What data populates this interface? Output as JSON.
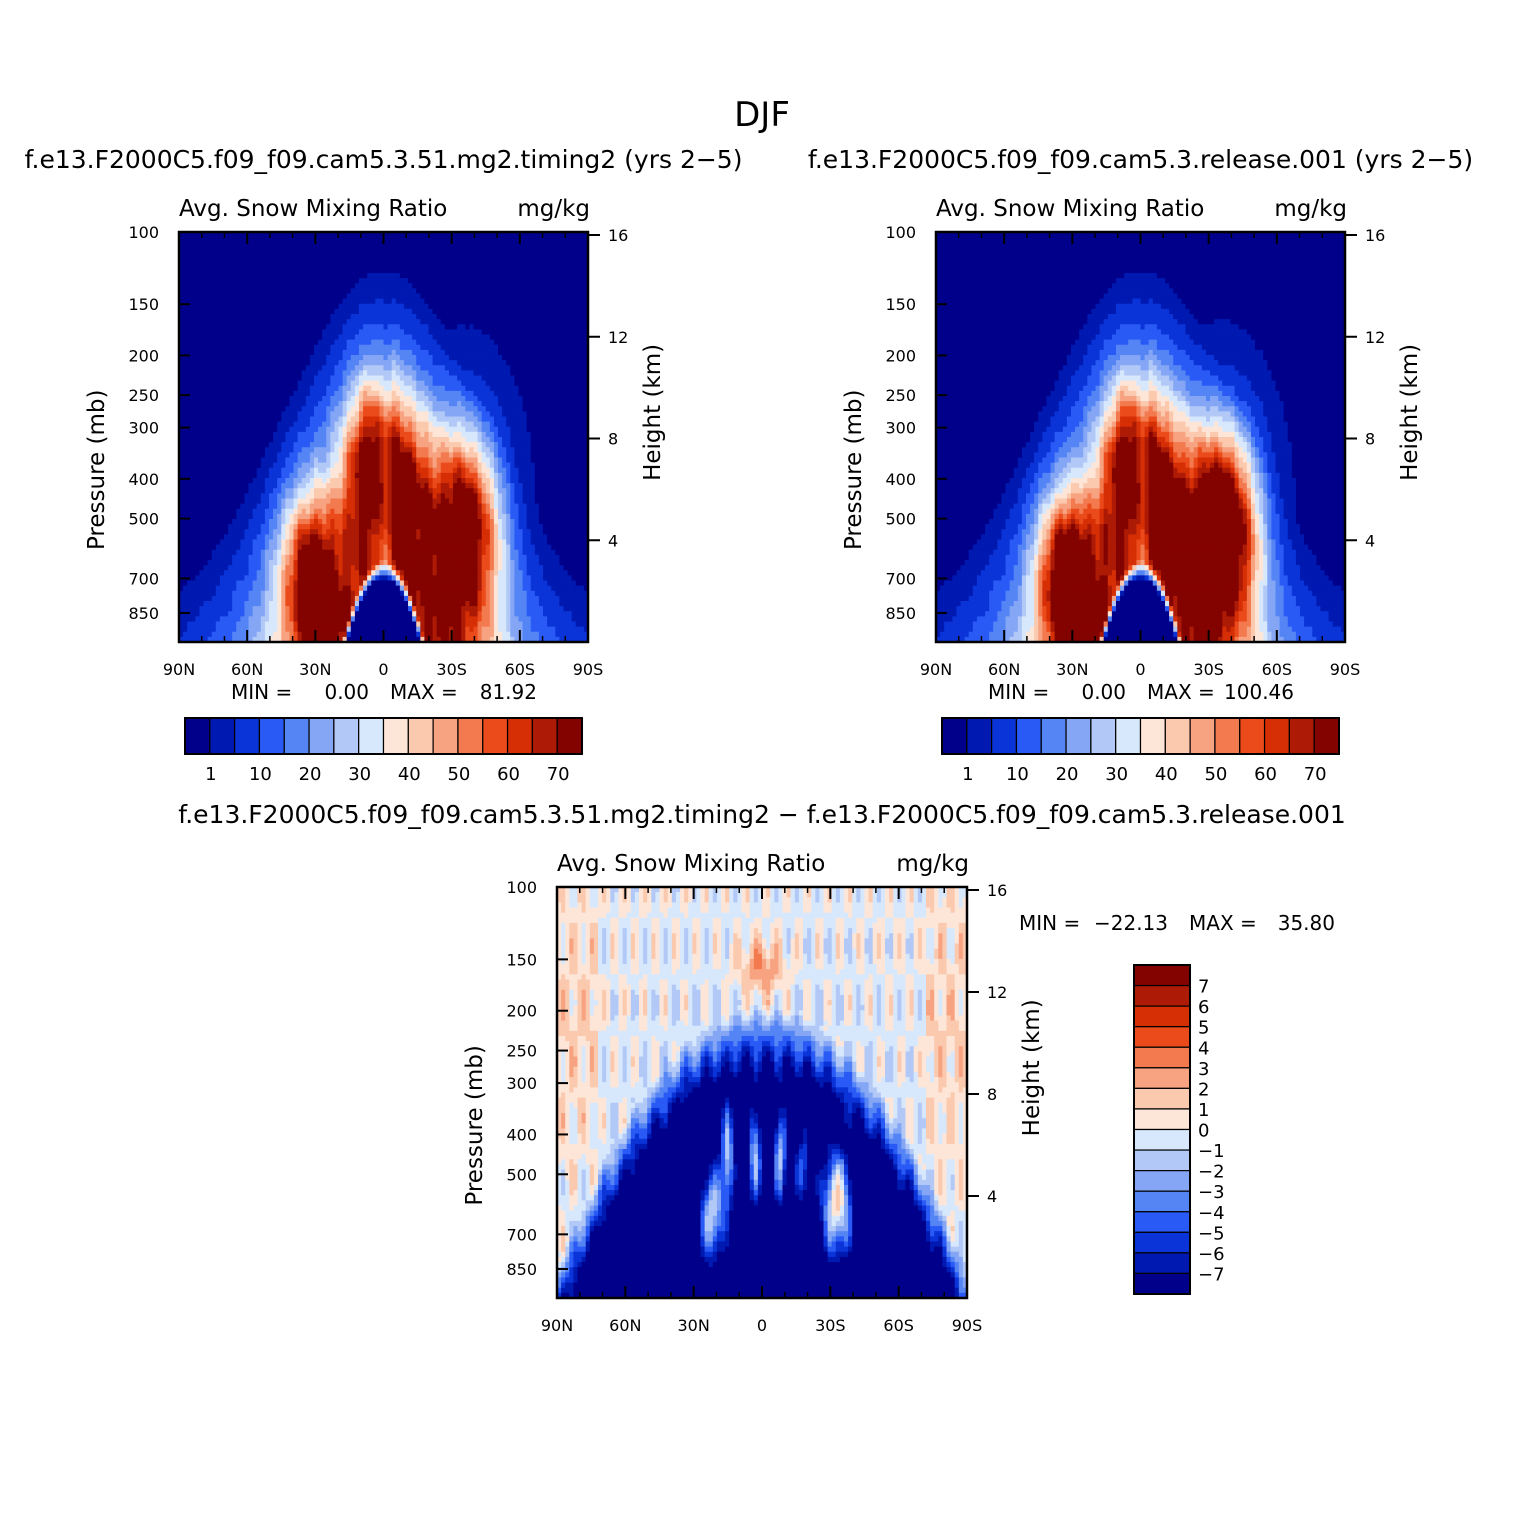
{
  "page_title": "DJF",
  "chart_data": [
    {
      "type": "contour",
      "id": "panel1",
      "title": "f.e13.F2000C5.f09_f09.cam5.3.51.mg2.timing2 (yrs 2−5)",
      "subtitle_left": "Avg. Snow Mixing Ratio",
      "subtitle_right": "mg/kg",
      "ylabel": "Pressure (mb)",
      "y2label": "Height (km)",
      "x_ticks": [
        "90N",
        "60N",
        "30N",
        "0",
        "30S",
        "60S",
        "90S"
      ],
      "y_ticks": [
        "100",
        "150",
        "200",
        "250",
        "300",
        "400",
        "500",
        "700",
        "850"
      ],
      "y_values": [
        100,
        150,
        200,
        250,
        300,
        400,
        500,
        700,
        850
      ],
      "y2_ticks": [
        "16",
        "12",
        "8",
        "4"
      ],
      "y2_values": [
        16,
        12,
        8,
        4
      ],
      "ylim": [
        100,
        1000
      ],
      "xlim": [
        90,
        -90
      ],
      "min_label": "MIN =",
      "min_value": "0.00",
      "max_label": "MAX =",
      "max_value": "81.92",
      "colorbar": {
        "orientation": "horizontal",
        "labels": [
          "1",
          "10",
          "20",
          "30",
          "40",
          "50",
          "60",
          "70"
        ],
        "colors": [
          "#00008a",
          "#0019b0",
          "#0a34d8",
          "#2a5af5",
          "#5585f5",
          "#84a6f5",
          "#b2c9f7",
          "#d8e8fc",
          "#fde6d8",
          "#fbc9ae",
          "#f7a381",
          "#f27a4e",
          "#eb4a1a",
          "#d62e05",
          "#ad1a05",
          "#830300"
        ]
      },
      "field": "snow_a"
    },
    {
      "type": "contour",
      "id": "panel2",
      "title": "f.e13.F2000C5.f09_f09.cam5.3.release.001 (yrs 2−5)",
      "subtitle_left": "Avg. Snow Mixing Ratio",
      "subtitle_right": "mg/kg",
      "ylabel": "Pressure (mb)",
      "y2label": "Height (km)",
      "x_ticks": [
        "90N",
        "60N",
        "30N",
        "0",
        "30S",
        "60S",
        "90S"
      ],
      "y_ticks": [
        "100",
        "150",
        "200",
        "250",
        "300",
        "400",
        "500",
        "700",
        "850"
      ],
      "y_values": [
        100,
        150,
        200,
        250,
        300,
        400,
        500,
        700,
        850
      ],
      "y2_ticks": [
        "16",
        "12",
        "8",
        "4"
      ],
      "y2_values": [
        16,
        12,
        8,
        4
      ],
      "ylim": [
        100,
        1000
      ],
      "xlim": [
        90,
        -90
      ],
      "min_label": "MIN =",
      "min_value": "0.00",
      "max_label": "MAX =",
      "max_value": "100.46",
      "colorbar": {
        "orientation": "horizontal",
        "labels": [
          "1",
          "10",
          "20",
          "30",
          "40",
          "50",
          "60",
          "70"
        ],
        "colors": [
          "#00008a",
          "#0019b0",
          "#0a34d8",
          "#2a5af5",
          "#5585f5",
          "#84a6f5",
          "#b2c9f7",
          "#d8e8fc",
          "#fde6d8",
          "#fbc9ae",
          "#f7a381",
          "#f27a4e",
          "#eb4a1a",
          "#d62e05",
          "#ad1a05",
          "#830300"
        ]
      },
      "field": "snow_b"
    },
    {
      "type": "contour",
      "id": "panel3",
      "title": "f.e13.F2000C5.f09_f09.cam5.3.51.mg2.timing2 − f.e13.F2000C5.f09_f09.cam5.3.release.001",
      "subtitle_left": "Avg. Snow Mixing Ratio",
      "subtitle_right": "mg/kg",
      "ylabel": "Pressure (mb)",
      "y2label": "Height (km)",
      "x_ticks": [
        "90N",
        "60N",
        "30N",
        "0",
        "30S",
        "60S",
        "90S"
      ],
      "y_ticks": [
        "100",
        "150",
        "200",
        "250",
        "300",
        "400",
        "500",
        "700",
        "850"
      ],
      "y_values": [
        100,
        150,
        200,
        250,
        300,
        400,
        500,
        700,
        850
      ],
      "y2_ticks": [
        "16",
        "12",
        "8",
        "4"
      ],
      "y2_values": [
        16,
        12,
        8,
        4
      ],
      "ylim": [
        100,
        1000
      ],
      "xlim": [
        90,
        -90
      ],
      "min_label": "MIN =",
      "min_value": "−22.13",
      "max_label": "MAX =",
      "max_value": "35.80",
      "colorbar": {
        "orientation": "vertical",
        "labels": [
          "7",
          "6",
          "5",
          "4",
          "3",
          "2",
          "1",
          "0",
          "−1",
          "−2",
          "−3",
          "−4",
          "−5",
          "−6",
          "−7"
        ],
        "colors": [
          "#830300",
          "#ad1a05",
          "#d62e05",
          "#eb4a1a",
          "#f27a4e",
          "#f7a381",
          "#fbc9ae",
          "#fde6d8",
          "#d8e8fc",
          "#b2c9f7",
          "#84a6f5",
          "#5585f5",
          "#2a5af5",
          "#0a34d8",
          "#0019b0",
          "#00008a"
        ]
      },
      "field": "diff"
    }
  ]
}
